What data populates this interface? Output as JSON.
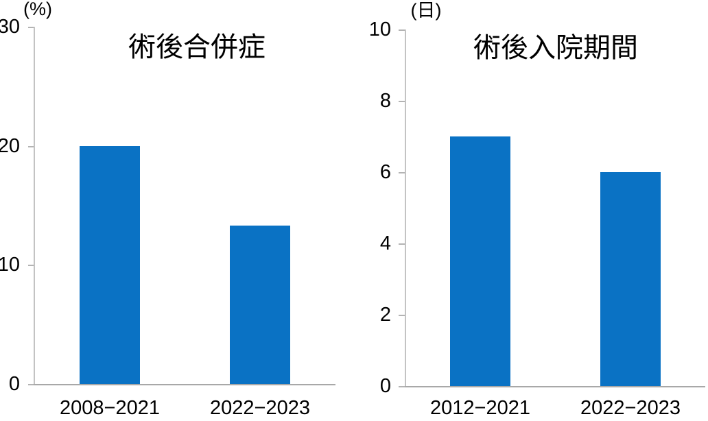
{
  "colors": {
    "bar": "#0a72c4",
    "axis_line": "#c3c3c3",
    "baseline": "#a8a8a8",
    "tick": "#b3b3b3",
    "text": "#000000",
    "background": "#ffffff"
  },
  "chart_data": [
    {
      "type": "bar",
      "title": "術後合併症",
      "ylabel": "(%)",
      "xlabel": "",
      "categories": [
        "2008−2021",
        "2022−2023"
      ],
      "values": [
        20,
        13.3
      ],
      "ylim": [
        0,
        30
      ],
      "yticks": [
        0,
        10,
        20,
        30
      ],
      "grid": false,
      "legend": "none",
      "bar_color": "#0a72c4"
    },
    {
      "type": "bar",
      "title": "術後入院期間",
      "ylabel": "(日)",
      "xlabel": "",
      "categories": [
        "2012−2021",
        "2022−2023"
      ],
      "values": [
        7,
        6
      ],
      "ylim": [
        0,
        10
      ],
      "yticks": [
        0,
        2,
        4,
        6,
        8,
        10
      ],
      "grid": false,
      "legend": "none",
      "bar_color": "#0a72c4"
    }
  ]
}
